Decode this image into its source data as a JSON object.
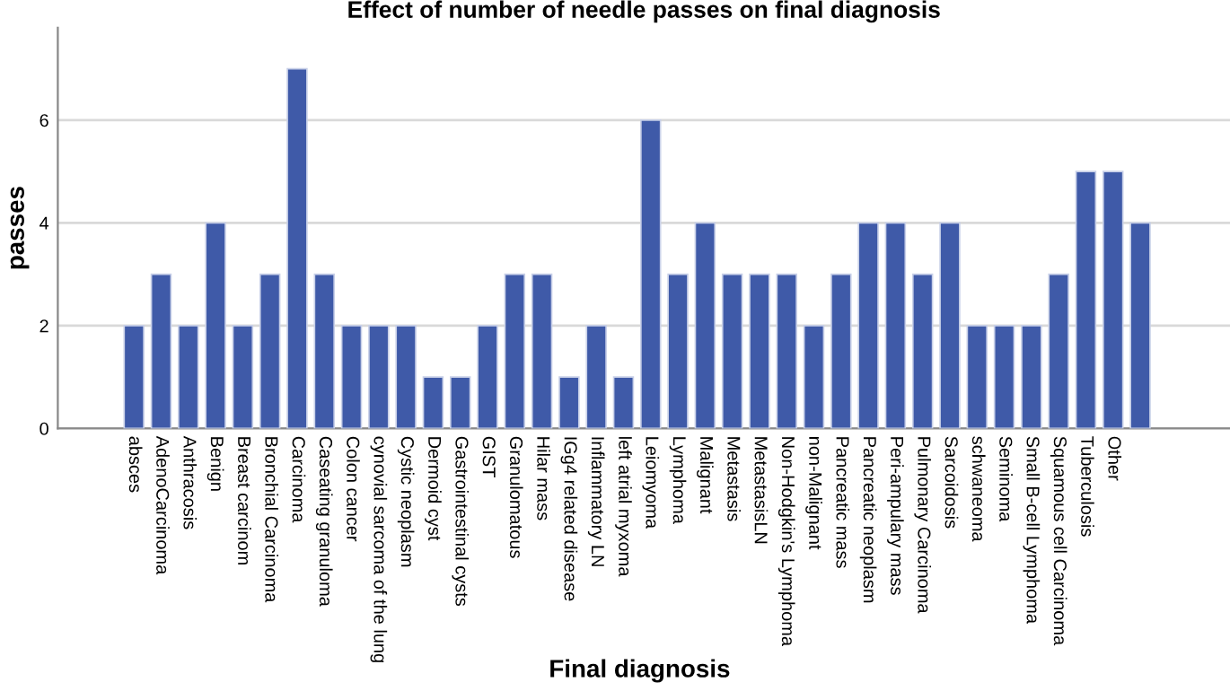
{
  "chart_data": {
    "type": "bar",
    "title": "Effect of number of needle passes on final diagnosis",
    "xlabel": "Final diagnosis",
    "ylabel": "passes",
    "categories": [
      "absces",
      "AdenoCarcinoma",
      "Anthracosis",
      "Benign",
      "Breast carcinom",
      "Bronchial Carcinoma",
      "Carcinoma",
      "Caseating granuloma",
      "Colon cancer",
      "cynovial sarcoma of the lung",
      "Cystic neoplasm",
      "Dermoid cyst",
      "Gastrointestinal cysts",
      "GIST",
      "Granulomatous",
      "Hilar mass",
      "IGg4 related disease",
      "Inflammatory LN",
      "left atrial myxoma",
      "Leiomyoma",
      "Lymphoma",
      "Malignant",
      "Metastasis",
      "MetastasisLN",
      "Non-Hodgkin's Lymphoma",
      "non-Malignant",
      "Pancreatic mass",
      "Pancreatic neoplasm",
      "Peri-ampulary mass",
      "Pulmonary Carcinoma",
      "Sarcoidosis",
      "schwaneoma",
      "Seminoma",
      "Small B-cell Lymphoma",
      "Squamous cell Carcinoma",
      "Tuberculosis",
      "Other",
      null
    ],
    "values": [
      2,
      3,
      2,
      4,
      2,
      3,
      7,
      3,
      2,
      2,
      2,
      1,
      1,
      2,
      3,
      3,
      1,
      2,
      1,
      6,
      3,
      4,
      3,
      3,
      3,
      2,
      3,
      4,
      4,
      3,
      4,
      2,
      2,
      2,
      3,
      5,
      5,
      4
    ],
    "color": "#3f5aa8",
    "ylim": [
      0,
      7.8
    ],
    "yticks": [
      0,
      2,
      4,
      6
    ],
    "grid": "y"
  }
}
